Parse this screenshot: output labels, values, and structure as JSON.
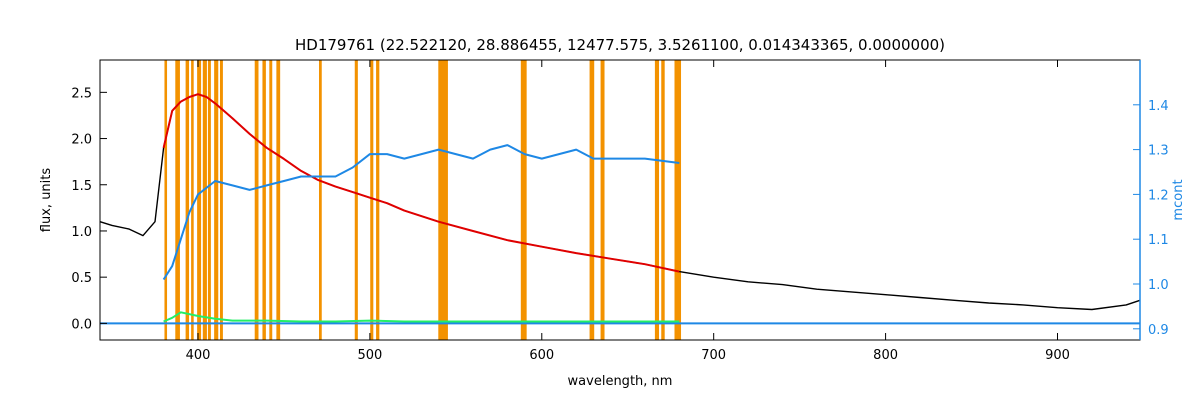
{
  "chart_data": {
    "type": "line",
    "title": "HD179761    (22.522120, 28.886455, 12477.575, 3.5261100, 0.014343365, 0.0000000)",
    "xlabel": "wavelength, nm",
    "ylabel": "flux, units",
    "ylabel_right": "mcont",
    "xlim": [
      343,
      948
    ],
    "ylim": [
      -0.18,
      2.85
    ],
    "ylim_right": [
      0.875,
      1.5
    ],
    "x_ticks": [
      400,
      500,
      600,
      700,
      800,
      900
    ],
    "y_ticks": [
      0.0,
      0.5,
      1.0,
      1.5,
      2.0,
      2.5
    ],
    "y_ticks_right": [
      0.9,
      1.0,
      1.1,
      1.2,
      1.3,
      1.4
    ],
    "grid": false,
    "colors": {
      "observed": "#000000",
      "model": "#e00000",
      "residual": "#22ee66",
      "mcont": "#1e88e5",
      "masks": "#f39200",
      "right_axis": "#1e88e5"
    },
    "masked_regions": [
      [
        380.5,
        382
      ],
      [
        386.8,
        389.5
      ],
      [
        392.8,
        394.8
      ],
      [
        396,
        397.5
      ],
      [
        399.5,
        401.8
      ],
      [
        402.8,
        405.2
      ],
      [
        405.8,
        407.5
      ],
      [
        409.4,
        411.8
      ],
      [
        412.8,
        414.5
      ],
      [
        433,
        435.2
      ],
      [
        437.5,
        439.5
      ],
      [
        441.5,
        443.2
      ],
      [
        445.6,
        447.8
      ],
      [
        470.4,
        472
      ],
      [
        491.2,
        493
      ],
      [
        500.2,
        502
      ],
      [
        503.6,
        505.5
      ],
      [
        539.8,
        545.4
      ],
      [
        587.8,
        591.2
      ],
      [
        627.8,
        630.5
      ],
      [
        634.2,
        636.5
      ],
      [
        665.8,
        668.2
      ],
      [
        669.5,
        671.5
      ],
      [
        677.2,
        681
      ]
    ],
    "series": [
      {
        "role": "observed",
        "x": [
          343,
          350,
          360,
          368,
          375,
          380,
          385,
          390,
          395,
          400,
          405,
          410,
          415,
          420,
          430,
          440,
          450,
          460,
          470,
          480,
          490,
          500,
          510,
          520,
          540,
          560,
          580,
          600,
          620,
          640,
          660,
          680,
          700,
          720,
          740,
          760,
          780,
          800,
          820,
          840,
          860,
          880,
          900,
          920,
          940,
          948
        ],
        "y": [
          1.1,
          1.06,
          1.02,
          0.95,
          1.1,
          1.9,
          2.3,
          2.4,
          2.45,
          2.48,
          2.45,
          2.38,
          2.3,
          2.22,
          2.05,
          1.9,
          1.78,
          1.65,
          1.55,
          1.48,
          1.42,
          1.36,
          1.3,
          1.22,
          1.1,
          1.0,
          0.9,
          0.83,
          0.76,
          0.7,
          0.64,
          0.56,
          0.5,
          0.45,
          0.42,
          0.37,
          0.34,
          0.31,
          0.28,
          0.25,
          0.22,
          0.2,
          0.17,
          0.15,
          0.2,
          0.25
        ]
      },
      {
        "role": "model",
        "x": [
          380,
          385,
          390,
          395,
          400,
          405,
          410,
          415,
          420,
          430,
          440,
          450,
          460,
          470,
          480,
          490,
          500,
          510,
          520,
          540,
          560,
          580,
          600,
          620,
          640,
          660,
          680
        ],
        "y": [
          1.9,
          2.3,
          2.4,
          2.45,
          2.48,
          2.45,
          2.38,
          2.3,
          2.22,
          2.05,
          1.9,
          1.78,
          1.65,
          1.55,
          1.48,
          1.42,
          1.36,
          1.3,
          1.22,
          1.1,
          1.0,
          0.9,
          0.83,
          0.76,
          0.7,
          0.64,
          0.56
        ]
      },
      {
        "role": "mcont",
        "axis": "right",
        "x": [
          380,
          385,
          390,
          395,
          400,
          410,
          420,
          430,
          440,
          450,
          460,
          470,
          480,
          490,
          500,
          510,
          520,
          530,
          540,
          550,
          560,
          570,
          580,
          590,
          600,
          610,
          620,
          630,
          640,
          660,
          680
        ],
        "y": [
          1.01,
          1.04,
          1.1,
          1.16,
          1.2,
          1.23,
          1.22,
          1.21,
          1.22,
          1.23,
          1.24,
          1.24,
          1.24,
          1.26,
          1.29,
          1.29,
          1.28,
          1.29,
          1.3,
          1.29,
          1.28,
          1.3,
          1.31,
          1.29,
          1.28,
          1.29,
          1.3,
          1.28,
          1.28,
          1.28,
          1.27
        ]
      },
      {
        "role": "mcont-baseline",
        "axis": "left",
        "x": [
          343,
          948
        ],
        "y": [
          0.0,
          0.0
        ]
      },
      {
        "role": "residual",
        "x": [
          380,
          385,
          390,
          400,
          410,
          420,
          440,
          460,
          480,
          500,
          520,
          540,
          560,
          580,
          600,
          620,
          640,
          660,
          680
        ],
        "y": [
          0.02,
          0.06,
          0.12,
          0.08,
          0.05,
          0.03,
          0.03,
          0.02,
          0.02,
          0.03,
          0.02,
          0.02,
          0.02,
          0.02,
          0.02,
          0.02,
          0.02,
          0.02,
          0.02
        ]
      }
    ]
  }
}
